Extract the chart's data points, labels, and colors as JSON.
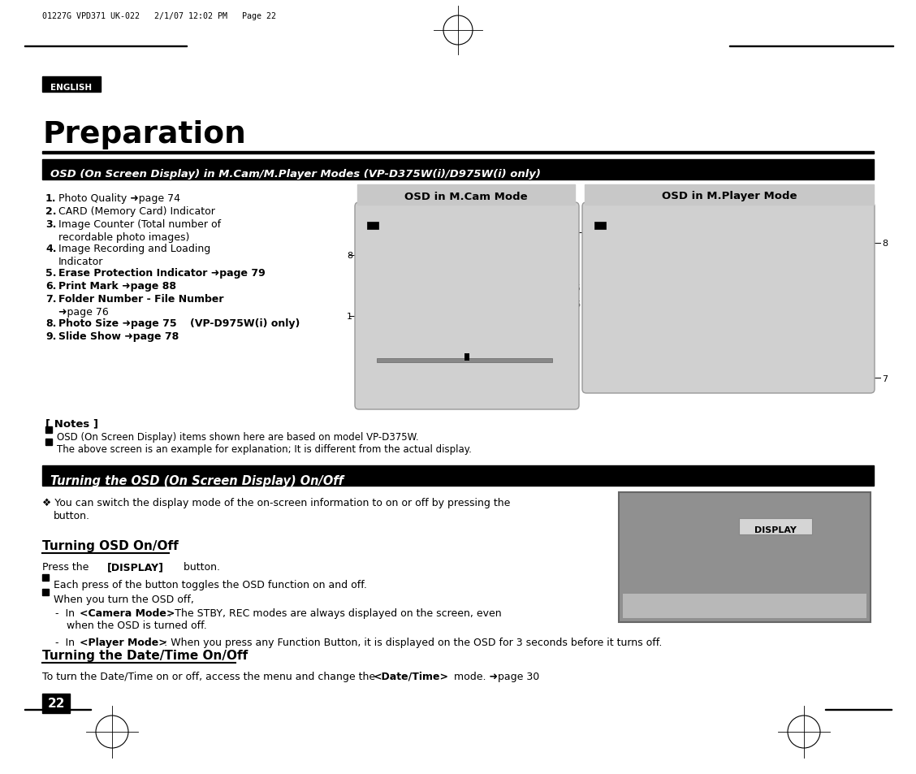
{
  "page_header": "01227G VPD371 UK-022   2/1/07 12:02 PM   Page 22",
  "english_label": "ENGLISH",
  "title": "Preparation",
  "section1_title": "OSD (On Screen Display) in M.Cam/M.Player Modes (VP-D375W(i)/D975W(i) only)",
  "note1": "OSD (On Screen Display) items shown here are based on model VP-D375W.",
  "note2": "The above screen is an example for explanation; It is different from the actual display.",
  "section2_title": "Turning the OSD (On Screen Display) On/Off",
  "page_number": "22",
  "bg_color": "#ffffff",
  "section_header_bg": "#000000",
  "section_header_text": "#ffffff",
  "english_bg": "#000000",
  "english_text": "#ffffff",
  "osd_header_bg": "#c8c8c8",
  "osd_screen_bg": "#d0d0d0"
}
